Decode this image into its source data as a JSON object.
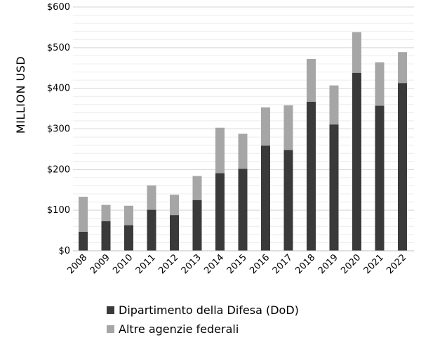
{
  "chart_data": {
    "type": "bar",
    "stacked": true,
    "title": "",
    "xlabel": "",
    "ylabel": "MILLION USD",
    "ylim": [
      0,
      600
    ],
    "yticks": [
      0,
      100,
      200,
      300,
      400,
      500,
      600
    ],
    "ytick_labels": [
      "$0",
      "$100",
      "$200",
      "$300",
      "$400",
      "$500",
      "$600"
    ],
    "categories": [
      "2008",
      "2009",
      "2010",
      "2011",
      "2012",
      "2013",
      "2014",
      "2015",
      "2016",
      "2017",
      "2018",
      "2019",
      "2020",
      "2021",
      "2022"
    ],
    "series": [
      {
        "name": "Dipartimento della Difesa (DoD)",
        "color": "#3a3a3a",
        "values": [
          47,
          73,
          63,
          101,
          88,
          125,
          191,
          202,
          259,
          248,
          367,
          311,
          438,
          357,
          413
        ]
      },
      {
        "name": "Altre agenzie federali",
        "color": "#a6a6a6",
        "values": [
          86,
          40,
          48,
          60,
          50,
          59,
          112,
          86,
          94,
          110,
          105,
          96,
          100,
          107,
          76
        ]
      }
    ],
    "grid": true,
    "legend_position": "bottom"
  }
}
